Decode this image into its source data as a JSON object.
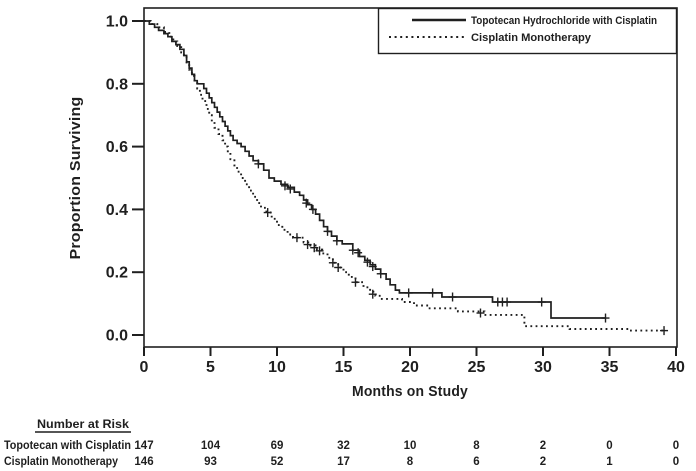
{
  "figure": {
    "background": "#ffffff",
    "ink_color": "#1f1f1f"
  },
  "chart_data": {
    "type": "line",
    "subtype": "kaplan-meier-step",
    "title": "",
    "xlabel": "Months on Study",
    "ylabel": "Proportion Surviving",
    "xlim": [
      0,
      40
    ],
    "ylim": [
      0.0,
      1.0
    ],
    "x_ticks": [
      0,
      5,
      10,
      15,
      20,
      25,
      30,
      35,
      40
    ],
    "y_ticks": [
      "1.0",
      "0.8",
      "0.6",
      "0.4",
      "0.2",
      "0.0"
    ],
    "grid": false,
    "legend_position": "top-right-inside-box",
    "series": [
      {
        "name": "Topotecan Hydrochloride with Cisplatin",
        "line_style": "solid",
        "color": "#1f1f1f",
        "start": [
          0,
          1.0
        ],
        "end_time": 34.7,
        "steps": [
          [
            0.4,
            0.99
          ],
          [
            0.8,
            0.98
          ],
          [
            1.1,
            0.97
          ],
          [
            1.5,
            0.96
          ],
          [
            1.8,
            0.95
          ],
          [
            2.1,
            0.935
          ],
          [
            2.4,
            0.925
          ],
          [
            2.7,
            0.91
          ],
          [
            3.0,
            0.89
          ],
          [
            3.2,
            0.87
          ],
          [
            3.4,
            0.85
          ],
          [
            3.6,
            0.83
          ],
          [
            3.8,
            0.81
          ],
          [
            4.0,
            0.8
          ],
          [
            4.5,
            0.785
          ],
          [
            4.7,
            0.77
          ],
          [
            4.9,
            0.755
          ],
          [
            5.1,
            0.74
          ],
          [
            5.3,
            0.725
          ],
          [
            5.5,
            0.71
          ],
          [
            5.7,
            0.695
          ],
          [
            5.9,
            0.68
          ],
          [
            6.1,
            0.665
          ],
          [
            6.3,
            0.65
          ],
          [
            6.5,
            0.635
          ],
          [
            6.7,
            0.62
          ],
          [
            7.0,
            0.61
          ],
          [
            7.3,
            0.6
          ],
          [
            7.6,
            0.585
          ],
          [
            7.9,
            0.57
          ],
          [
            8.2,
            0.555
          ],
          [
            8.6,
            0.545
          ],
          [
            9.0,
            0.525
          ],
          [
            9.4,
            0.5
          ],
          [
            9.8,
            0.49
          ],
          [
            10.3,
            0.48
          ],
          [
            10.8,
            0.47
          ],
          [
            11.3,
            0.455
          ],
          [
            11.7,
            0.445
          ],
          [
            12.0,
            0.43
          ],
          [
            12.3,
            0.415
          ],
          [
            12.6,
            0.4
          ],
          [
            12.9,
            0.385
          ],
          [
            13.2,
            0.365
          ],
          [
            13.5,
            0.345
          ],
          [
            13.8,
            0.33
          ],
          [
            14.1,
            0.315
          ],
          [
            14.5,
            0.3
          ],
          [
            14.9,
            0.29
          ],
          [
            15.7,
            0.27
          ],
          [
            16.2,
            0.25
          ],
          [
            16.6,
            0.238
          ],
          [
            17.0,
            0.224
          ],
          [
            17.4,
            0.21
          ],
          [
            17.8,
            0.195
          ],
          [
            18.2,
            0.178
          ],
          [
            18.5,
            0.16
          ],
          [
            18.9,
            0.143
          ],
          [
            19.2,
            0.134
          ],
          [
            22.4,
            0.121
          ],
          [
            26.2,
            0.105
          ],
          [
            30.6,
            0.054
          ]
        ],
        "censor_marks": [
          [
            8.6,
            0.545
          ],
          [
            10.6,
            0.475
          ],
          [
            11.0,
            0.465
          ],
          [
            12.2,
            0.42
          ],
          [
            12.7,
            0.4
          ],
          [
            13.8,
            0.33
          ],
          [
            14.5,
            0.3
          ],
          [
            15.7,
            0.27
          ],
          [
            16.1,
            0.262
          ],
          [
            16.8,
            0.232
          ],
          [
            17.2,
            0.218
          ],
          [
            17.8,
            0.195
          ],
          [
            19.9,
            0.134
          ],
          [
            21.7,
            0.134
          ],
          [
            23.2,
            0.121
          ],
          [
            26.6,
            0.105
          ],
          [
            26.95,
            0.105
          ],
          [
            27.3,
            0.105
          ],
          [
            29.9,
            0.105
          ],
          [
            34.7,
            0.054
          ]
        ]
      },
      {
        "name": "Cisplatin Monotherapy",
        "line_style": "dotted",
        "color": "#1f1f1f",
        "start": [
          0,
          1.0
        ],
        "end_time": 39.1,
        "steps": [
          [
            0.5,
            0.99
          ],
          [
            1.0,
            0.98
          ],
          [
            1.5,
            0.965
          ],
          [
            1.9,
            0.95
          ],
          [
            2.2,
            0.935
          ],
          [
            2.5,
            0.92
          ],
          [
            2.8,
            0.9
          ],
          [
            3.0,
            0.885
          ],
          [
            3.2,
            0.865
          ],
          [
            3.4,
            0.845
          ],
          [
            3.6,
            0.825
          ],
          [
            3.8,
            0.805
          ],
          [
            4.0,
            0.785
          ],
          [
            4.2,
            0.765
          ],
          [
            4.4,
            0.745
          ],
          [
            4.7,
            0.72
          ],
          [
            4.9,
            0.7
          ],
          [
            5.1,
            0.68
          ],
          [
            5.3,
            0.66
          ],
          [
            5.6,
            0.64
          ],
          [
            5.9,
            0.62
          ],
          [
            6.1,
            0.6
          ],
          [
            6.3,
            0.58
          ],
          [
            6.5,
            0.56
          ],
          [
            6.8,
            0.54
          ],
          [
            7.0,
            0.52
          ],
          [
            7.3,
            0.5
          ],
          [
            7.6,
            0.48
          ],
          [
            7.9,
            0.46
          ],
          [
            8.2,
            0.44
          ],
          [
            8.5,
            0.42
          ],
          [
            8.8,
            0.405
          ],
          [
            9.2,
            0.39
          ],
          [
            9.6,
            0.37
          ],
          [
            10.0,
            0.35
          ],
          [
            10.4,
            0.335
          ],
          [
            10.8,
            0.32
          ],
          [
            11.2,
            0.31
          ],
          [
            12.0,
            0.295
          ],
          [
            12.5,
            0.285
          ],
          [
            13.0,
            0.272
          ],
          [
            13.4,
            0.26
          ],
          [
            13.8,
            0.246
          ],
          [
            14.2,
            0.23
          ],
          [
            14.6,
            0.215
          ],
          [
            15.0,
            0.2
          ],
          [
            15.4,
            0.185
          ],
          [
            15.9,
            0.168
          ],
          [
            16.5,
            0.152
          ],
          [
            17.0,
            0.138
          ],
          [
            17.4,
            0.125
          ],
          [
            17.8,
            0.115
          ],
          [
            19.4,
            0.105
          ],
          [
            20.3,
            0.094
          ],
          [
            21.4,
            0.085
          ],
          [
            23.6,
            0.075
          ],
          [
            25.6,
            0.064
          ],
          [
            28.6,
            0.028
          ],
          [
            32.0,
            0.019
          ],
          [
            36.5,
            0.014
          ]
        ],
        "censor_marks": [
          [
            9.3,
            0.39
          ],
          [
            11.5,
            0.31
          ],
          [
            12.3,
            0.288
          ],
          [
            12.8,
            0.278
          ],
          [
            13.2,
            0.268
          ],
          [
            14.2,
            0.23
          ],
          [
            14.6,
            0.215
          ],
          [
            15.9,
            0.168
          ],
          [
            17.2,
            0.13
          ],
          [
            25.3,
            0.07
          ],
          [
            39.1,
            0.014
          ]
        ]
      }
    ]
  },
  "risk_table": {
    "header": "Number at Risk",
    "time_points": [
      0,
      5,
      10,
      15,
      20,
      25,
      30,
      35,
      40
    ],
    "rows": [
      {
        "label": "Topotecan with Cisplatin",
        "counts": [
          "147",
          "104",
          "69",
          "32",
          "10",
          "8",
          "2",
          "0",
          "0"
        ]
      },
      {
        "label": "Cisplatin Monotherapy",
        "counts": [
          "146",
          "93",
          "52",
          "17",
          "8",
          "6",
          "2",
          "1",
          "0"
        ]
      }
    ]
  }
}
